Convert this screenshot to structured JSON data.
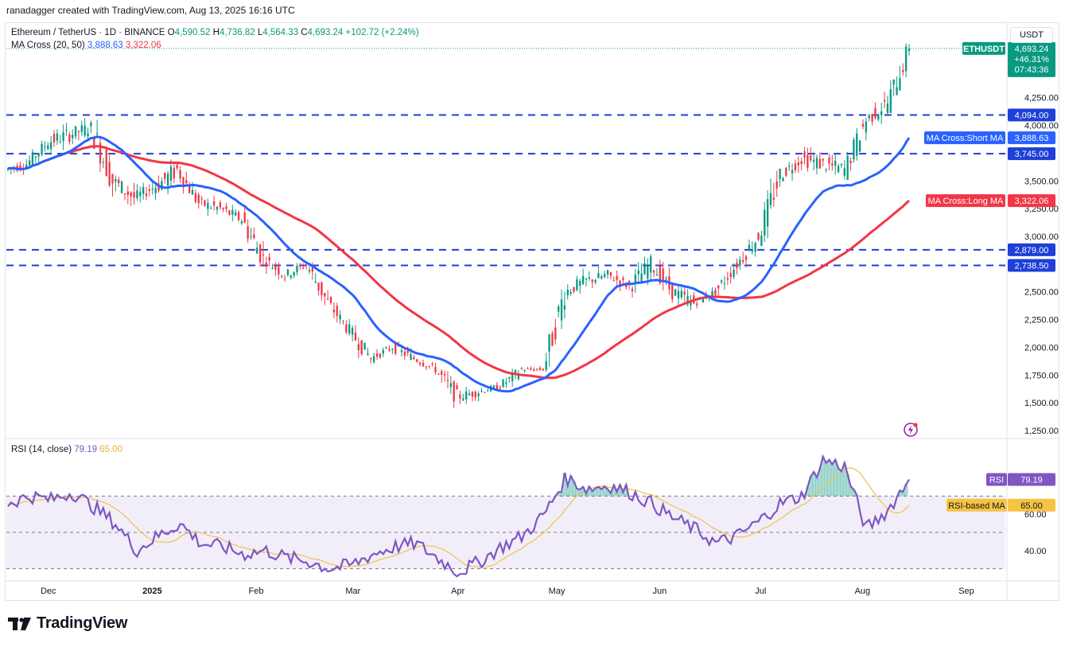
{
  "header": {
    "creator": "ranadagger created with TradingView.com, Aug 13, 2025 16:16 UTC"
  },
  "legend": {
    "symbol": "Ethereum / TetherUS · 1D · BINANCE",
    "open_label": "O",
    "open": "4,590.52",
    "high_label": "H",
    "high": "4,736.82",
    "low_label": "L",
    "low": "4,564.33",
    "close_label": "C",
    "close": "4,693.24",
    "change": "+102.72 (+2.24%)",
    "ma_name": "MA Cross (20, 50)",
    "ma_short": "3,888.63",
    "ma_long": "3,322.06"
  },
  "rsi_legend": {
    "name": "RSI (14, close)",
    "value": "79.19",
    "ma": "65.00"
  },
  "price_scale": {
    "unit": "USDT",
    "ticks": [
      "4,250.00",
      "4,000.00",
      "3,500.00",
      "3,250.00",
      "3,000.00",
      "2,500.00",
      "2,250.00",
      "2,000.00",
      "1,750.00",
      "1,500.00",
      "1,250.00"
    ],
    "current_price_label": "4,693.24",
    "change_pct": "+46.31%",
    "countdown": "07:43:36",
    "symbol_tag": "ETHUSDT"
  },
  "rsi_scale": {
    "ticks": [
      "60.00",
      "40.00"
    ]
  },
  "time_axis": [
    "Dec",
    "2025",
    "Feb",
    "Mar",
    "Apr",
    "May",
    "Jun",
    "Jul",
    "Aug",
    "Sep"
  ],
  "tags": {
    "short_ma": "MA Cross:Short MA",
    "long_ma": "MA Cross:Long MA",
    "rsi": "RSI",
    "rsi_ma": "RSI-based MA"
  },
  "footer": {
    "brand": "TradingView"
  },
  "colors": {
    "up": "#089981",
    "down": "#f23645",
    "short_ma": "#2962ff",
    "long_ma": "#f23645",
    "level": "#1e3fd8",
    "rsi": "#7e57c2",
    "rsi_ma": "#f0c24a"
  },
  "chart_data": [
    {
      "type": "candlestick",
      "title": "Ethereum / TetherUS · 1D · BINANCE",
      "ylim": [
        1200,
        4800
      ],
      "x_axis": [
        "Dec",
        "2025",
        "Feb",
        "Mar",
        "Apr",
        "May",
        "Jun",
        "Jul",
        "Aug",
        "Sep"
      ],
      "price_path_weekly": [
        [
          3600,
          3700,
          3450,
          3650
        ],
        [
          3650,
          3900,
          3600,
          3850
        ],
        [
          3850,
          4094,
          3700,
          3920
        ],
        [
          3920,
          4100,
          3750,
          3980
        ],
        [
          3980,
          4050,
          3300,
          3500
        ],
        [
          3500,
          3600,
          3150,
          3350
        ],
        [
          3350,
          3550,
          3250,
          3450
        ],
        [
          3450,
          3700,
          3200,
          3600
        ],
        [
          3600,
          3650,
          3250,
          3300
        ],
        [
          3300,
          3450,
          3150,
          3250
        ],
        [
          3250,
          3400,
          3100,
          3150
        ],
        [
          3150,
          3300,
          2700,
          2800
        ],
        [
          2800,
          2850,
          2550,
          2650
        ],
        [
          2650,
          2800,
          2550,
          2750
        ],
        [
          2750,
          2780,
          2300,
          2400
        ],
        [
          2400,
          2450,
          2100,
          2150
        ],
        [
          2150,
          2200,
          1800,
          1900
        ],
        [
          1900,
          2050,
          1850,
          2000
        ],
        [
          2000,
          2100,
          1850,
          1900
        ],
        [
          1900,
          1950,
          1750,
          1800
        ],
        [
          1800,
          1850,
          1420,
          1550
        ],
        [
          1550,
          1650,
          1400,
          1600
        ],
        [
          1600,
          1700,
          1550,
          1650
        ],
        [
          1650,
          1850,
          1600,
          1800
        ],
        [
          1800,
          1850,
          1750,
          1800
        ],
        [
          1800,
          2550,
          1780,
          2500
        ],
        [
          2500,
          2738.5,
          2400,
          2600
        ],
        [
          2600,
          2738.5,
          2450,
          2650
        ],
        [
          2650,
          2700,
          2450,
          2550
        ],
        [
          2550,
          2879,
          2450,
          2750
        ],
        [
          2750,
          2800,
          2400,
          2500
        ],
        [
          2500,
          2550,
          2150,
          2400
        ],
        [
          2400,
          2550,
          2350,
          2500
        ],
        [
          2500,
          2800,
          2450,
          2750
        ],
        [
          2750,
          3100,
          2700,
          3000
        ],
        [
          3000,
          3600,
          2950,
          3550
        ],
        [
          3550,
          3800,
          3450,
          3700
        ],
        [
          3700,
          3900,
          3500,
          3650
        ],
        [
          3650,
          3745,
          3350,
          3600
        ],
        [
          3600,
          4094,
          3550,
          4050
        ],
        [
          4050,
          4400,
          4000,
          4200
        ],
        [
          4200,
          4736.82,
          4150,
          4693.24
        ]
      ],
      "series": [
        {
          "name": "MA Cross:Short MA",
          "last": 3888.63
        },
        {
          "name": "MA Cross:Long MA",
          "last": 3322.06
        }
      ],
      "levels": [
        4094.0,
        3745.0,
        2879.0,
        2738.5
      ],
      "last": {
        "open": 4590.52,
        "high": 4736.82,
        "low": 4564.33,
        "close": 4693.24,
        "change": 102.72,
        "change_pct": 2.24
      }
    },
    {
      "type": "line",
      "title": "RSI (14, close)",
      "ylim": [
        25,
        100
      ],
      "bands": [
        30,
        50,
        70
      ],
      "series": [
        {
          "name": "RSI",
          "values": [
            66,
            70,
            68,
            72,
            64,
            55,
            40,
            48,
            55,
            44,
            42,
            38,
            40,
            36,
            34,
            30,
            32,
            38,
            42,
            44,
            36,
            28,
            34,
            42,
            48,
            60,
            80,
            74,
            76,
            72,
            66,
            58,
            52,
            44,
            48,
            56,
            66,
            70,
            90,
            86,
            52,
            62,
            79.19
          ],
          "last": 79.19
        },
        {
          "name": "RSI-based MA",
          "last": 65.0
        }
      ]
    }
  ]
}
